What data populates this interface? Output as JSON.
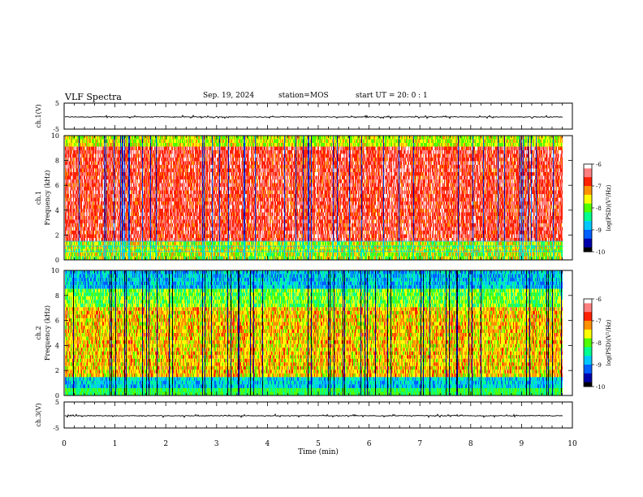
{
  "header": {
    "title": "VLF Spectra",
    "date": "Sep. 19, 2024",
    "station": "station=MOS",
    "start": "start  UT =   20: 0  : 1"
  },
  "colors": {
    "spectrum_scale": [
      "#000000",
      "#0000aa",
      "#0060ff",
      "#00c8ff",
      "#00ff90",
      "#50ff00",
      "#ffff00",
      "#ff9000",
      "#ff2000",
      "#ff7f7f",
      "#ffffff"
    ]
  },
  "chart_data": [
    {
      "type": "line",
      "id": "ch1-waveform",
      "ylabel": "ch.1(V)",
      "ylim": [
        -5,
        5
      ],
      "yticks": [
        "5",
        "-5"
      ],
      "xlim": [
        0,
        10
      ],
      "series": [
        {
          "values_description_level": -0.3
        }
      ]
    },
    {
      "type": "heatmap",
      "id": "ch1-spectrum",
      "ylabel_lines": [
        "ch.1",
        "Frequency (kHz)"
      ],
      "ylim": [
        0,
        10
      ],
      "yticks": [
        "0",
        "2",
        "4",
        "6",
        "8",
        "10"
      ],
      "xlim": [
        0,
        10
      ],
      "colorbar": {
        "label": "log(PSD)(V²/Hz)",
        "range": [
          -10,
          -6
        ],
        "ticks": [
          "-6",
          "-7",
          "-8",
          "-9",
          "-10"
        ]
      }
    },
    {
      "type": "heatmap",
      "id": "ch2-spectrum",
      "ylabel_lines": [
        "ch.2",
        "Frequency (kHz)"
      ],
      "ylim": [
        0,
        10
      ],
      "yticks": [
        "0",
        "2",
        "4",
        "6",
        "8",
        "10"
      ],
      "xlim": [
        0,
        10
      ],
      "colorbar": {
        "label": "log(PSD)(V²/Hz)",
        "range": [
          -10,
          -6
        ],
        "ticks": [
          "-6",
          "-7",
          "-8",
          "-9",
          "-10"
        ]
      }
    },
    {
      "type": "line",
      "id": "ch3-waveform",
      "ylabel": "ch.3(V)",
      "ylim": [
        -5,
        5
      ],
      "yticks": [
        "5",
        "-5"
      ],
      "xlim": [
        0,
        10
      ],
      "series": [
        {
          "values_description_level": -0.3
        }
      ]
    }
  ],
  "xaxis": {
    "label": "Time  (min)",
    "ticks": [
      "0",
      "1",
      "2",
      "3",
      "4",
      "5",
      "6",
      "7",
      "8",
      "9",
      "10"
    ]
  }
}
